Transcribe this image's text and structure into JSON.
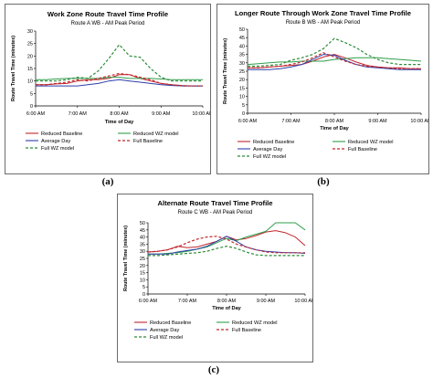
{
  "captions": [
    "(a)",
    "(b)",
    "(c)"
  ],
  "colors": {
    "reduced_baseline": "#c0272d",
    "reduced_wz": "#2e9e4a",
    "average_day": "#2c3ea8",
    "full_baseline": "#c0272d",
    "full_wz": "#2e8b3a"
  },
  "chart_data": [
    {
      "type": "line",
      "title": "Work Zone Route Travel Time Profile",
      "subtitle": "Route A WB - AM Peak Period",
      "xlabel": "Time of Day",
      "ylabel": "Route Travel Time (minutes)",
      "x_ticks": [
        "6:00 AM",
        "7:00 AM",
        "8:00 AM",
        "9:00 AM",
        "10:00 AM"
      ],
      "ylim": [
        0,
        30
      ],
      "y_ticks": [
        0,
        5,
        10,
        15,
        20,
        25,
        30
      ],
      "grid": false,
      "legend_position": "bottom",
      "x": [
        "6:00",
        "6:15",
        "6:30",
        "6:45",
        "7:00",
        "7:15",
        "7:30",
        "7:45",
        "8:00",
        "8:15",
        "8:30",
        "8:45",
        "9:00",
        "9:15",
        "9:30",
        "9:45",
        "10:00"
      ],
      "series": [
        {
          "name": "Reduced Baseline",
          "style": "solid",
          "color": "#c0272d",
          "values": [
            8.5,
            8.5,
            8.8,
            9.0,
            10.0,
            10.5,
            10.5,
            11.0,
            12.5,
            12.5,
            11.0,
            10.0,
            9.0,
            8.5,
            8.2,
            8.0,
            8.0
          ]
        },
        {
          "name": "Reduced WZ model",
          "style": "solid",
          "color": "#2e9e4a",
          "values": [
            10.5,
            10.5,
            10.8,
            11.0,
            11.0,
            11.0,
            11.0,
            11.5,
            11.5,
            11.0,
            11.0,
            11.0,
            10.8,
            10.5,
            10.5,
            10.5,
            10.5
          ]
        },
        {
          "name": "Average Day",
          "style": "solid",
          "color": "#2c3ea8",
          "values": [
            8.0,
            8.0,
            8.0,
            8.0,
            8.0,
            8.5,
            9.0,
            10.0,
            10.5,
            10.0,
            9.5,
            9.0,
            8.5,
            8.2,
            8.0,
            8.0,
            8.0
          ]
        },
        {
          "name": "Full Baseline",
          "style": "dashed",
          "color": "#c0272d",
          "values": [
            8.5,
            8.5,
            9.0,
            9.5,
            10.5,
            10.0,
            11.0,
            12.0,
            13.0,
            12.5,
            11.5,
            10.5,
            9.0,
            8.5,
            8.0,
            8.0,
            8.0
          ]
        },
        {
          "name": "Full WZ model",
          "style": "dashed",
          "color": "#2e8b3a",
          "values": [
            10.0,
            10.0,
            10.0,
            10.5,
            11.5,
            11.0,
            14.0,
            19.0,
            24.5,
            20.0,
            19.5,
            15.0,
            11.5,
            10.0,
            10.0,
            10.0,
            10.0
          ]
        }
      ]
    },
    {
      "type": "line",
      "title": "Longer Route Through Work Zone Travel Time Profile",
      "subtitle": "Route B WB - AM Peak Period",
      "xlabel": "Time of Day",
      "ylabel": "Route Travel Time (minutes)",
      "x_ticks": [
        "6:00 AM",
        "7:00 AM",
        "8:00 AM",
        "9:00 AM",
        "10:00 AM"
      ],
      "ylim": [
        0,
        50
      ],
      "y_ticks": [
        0,
        5,
        10,
        15,
        20,
        25,
        30,
        35,
        40,
        45,
        50
      ],
      "grid": false,
      "legend_position": "bottom",
      "x": [
        "6:00",
        "6:15",
        "6:30",
        "6:45",
        "7:00",
        "7:15",
        "7:30",
        "7:45",
        "8:00",
        "8:15",
        "8:30",
        "8:45",
        "9:00",
        "9:15",
        "9:30",
        "9:45",
        "10:00"
      ],
      "series": [
        {
          "name": "Reduced Baseline",
          "style": "solid",
          "color": "#c0272d",
          "values": [
            27.0,
            27.0,
            27.5,
            28.0,
            28.5,
            29.0,
            31.0,
            33.5,
            35.0,
            33.0,
            30.5,
            28.5,
            27.5,
            27.0,
            27.0,
            26.5,
            26.5
          ]
        },
        {
          "name": "Reduced WZ model",
          "style": "solid",
          "color": "#2e9e4a",
          "values": [
            29.0,
            29.5,
            30.0,
            30.5,
            30.5,
            31.0,
            31.0,
            31.0,
            32.0,
            32.5,
            33.0,
            33.0,
            33.0,
            32.5,
            32.0,
            31.5,
            31.0
          ]
        },
        {
          "name": "Average Day",
          "style": "solid",
          "color": "#2c3ea8",
          "values": [
            26.0,
            26.0,
            26.0,
            26.5,
            27.5,
            29.0,
            32.0,
            35.0,
            34.5,
            31.5,
            29.0,
            27.5,
            27.0,
            26.5,
            26.0,
            26.0,
            26.0
          ]
        },
        {
          "name": "Full Baseline",
          "style": "dashed",
          "color": "#c0272d",
          "values": [
            27.0,
            27.0,
            27.5,
            28.0,
            29.0,
            30.5,
            33.0,
            36.0,
            33.5,
            31.0,
            29.0,
            28.0,
            27.5,
            27.0,
            26.5,
            26.5,
            26.5
          ]
        },
        {
          "name": "Full WZ model",
          "style": "dashed",
          "color": "#2e8b3a",
          "values": [
            28.0,
            28.0,
            28.5,
            29.0,
            31.5,
            33.0,
            35.0,
            38.5,
            44.5,
            42.0,
            39.0,
            35.0,
            32.0,
            30.0,
            29.0,
            29.0,
            29.0
          ]
        }
      ]
    },
    {
      "type": "line",
      "title": "Alternate Route Travel Time Profile",
      "subtitle": "Route C WB - AM Peak Period",
      "xlabel": "Time of Day",
      "ylabel": "Route Travel Time (minutes)",
      "x_ticks": [
        "6:00 AM",
        "7:00 AM",
        "8:00 AM",
        "9:00 AM",
        "10:00 AM"
      ],
      "ylim": [
        0,
        50
      ],
      "y_ticks": [
        0,
        5,
        10,
        15,
        20,
        25,
        30,
        35,
        40,
        45,
        50
      ],
      "grid": false,
      "legend_position": "bottom",
      "x": [
        "6:00",
        "6:15",
        "6:30",
        "6:45",
        "7:00",
        "7:15",
        "7:30",
        "7:45",
        "8:00",
        "8:15",
        "8:30",
        "8:45",
        "9:00",
        "9:15",
        "9:30",
        "9:45",
        "10:00"
      ],
      "series": [
        {
          "name": "Reduced Baseline",
          "style": "solid",
          "color": "#c0272d",
          "values": [
            29.5,
            30.0,
            31.0,
            33.5,
            32.5,
            33.0,
            35.0,
            37.0,
            40.5,
            38.0,
            39.0,
            41.0,
            43.5,
            44.5,
            43.0,
            40.0,
            34.0
          ]
        },
        {
          "name": "Reduced WZ model",
          "style": "solid",
          "color": "#2e9e4a",
          "values": [
            28.0,
            28.0,
            28.5,
            29.0,
            30.0,
            31.5,
            33.0,
            36.0,
            39.0,
            37.5,
            40.0,
            42.0,
            44.0,
            50.0,
            50.0,
            50.0,
            45.0
          ]
        },
        {
          "name": "Average Day",
          "style": "solid",
          "color": "#2c3ea8",
          "values": [
            28.0,
            28.0,
            28.0,
            29.5,
            30.5,
            31.5,
            33.5,
            37.0,
            40.5,
            37.0,
            33.0,
            31.0,
            30.0,
            29.5,
            29.0,
            29.0,
            28.5
          ]
        },
        {
          "name": "Full Baseline",
          "style": "dashed",
          "color": "#c0272d",
          "values": [
            29.5,
            30.0,
            31.0,
            33.0,
            36.0,
            38.5,
            40.0,
            40.5,
            38.5,
            35.0,
            33.0,
            31.0,
            29.5,
            29.0,
            29.0,
            29.0,
            29.0
          ]
        },
        {
          "name": "Full WZ model",
          "style": "dashed",
          "color": "#2e8b3a",
          "values": [
            27.0,
            27.0,
            27.5,
            28.0,
            28.5,
            29.0,
            30.0,
            32.0,
            33.5,
            32.0,
            29.5,
            27.5,
            27.0,
            27.0,
            27.0,
            27.0,
            27.0
          ]
        }
      ]
    }
  ]
}
